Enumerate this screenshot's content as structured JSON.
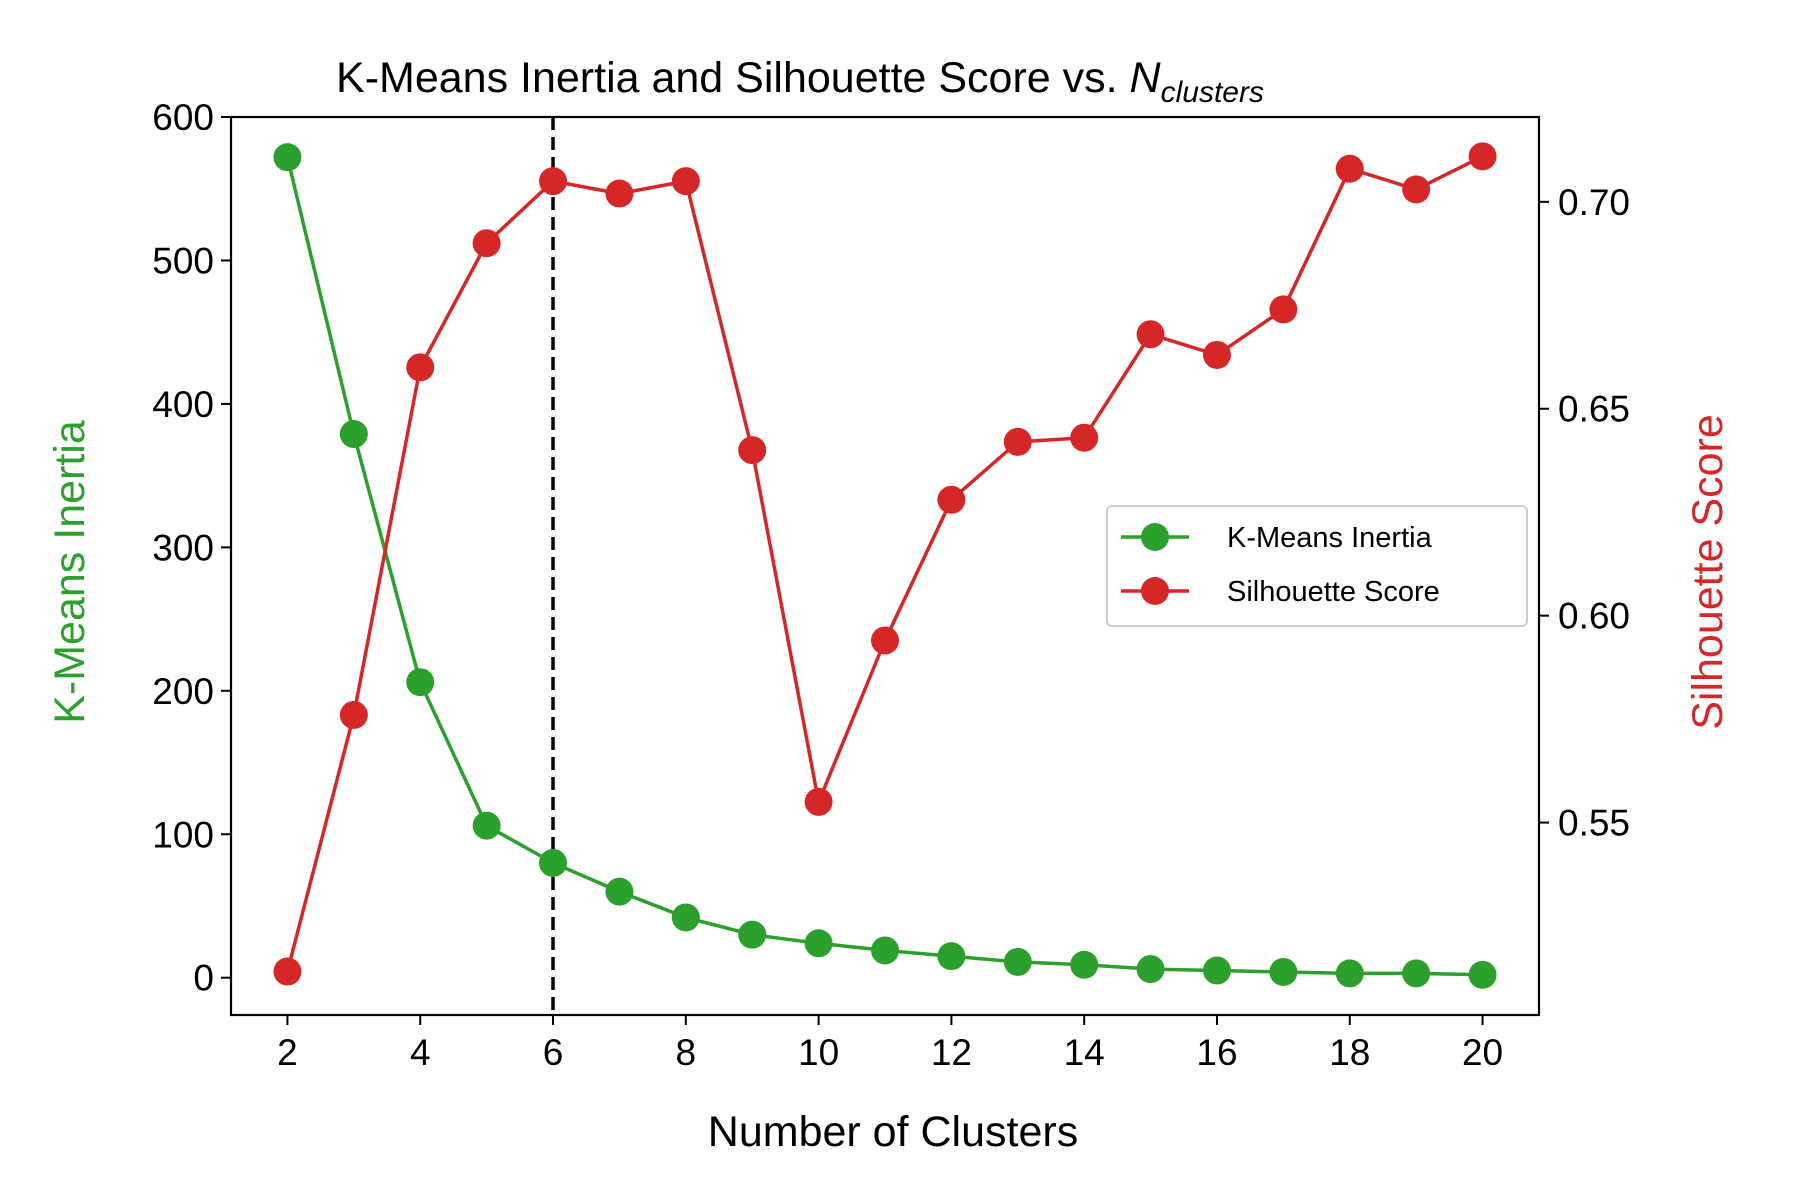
{
  "chart_data": {
    "type": "line",
    "title": "K-Means Inertia and Silhouette Score vs. ",
    "title_math_base": "N",
    "title_math_sub": "clusters",
    "xlabel": "Number of Clusters",
    "ylabel_left": "K-Means Inertia",
    "ylabel_right": "Silhouette Score",
    "x": [
      2,
      3,
      4,
      5,
      6,
      7,
      8,
      9,
      10,
      11,
      12,
      13,
      14,
      15,
      16,
      17,
      18,
      19,
      20
    ],
    "xlim": [
      1.15,
      20.85
    ],
    "xticks": [
      2,
      4,
      6,
      8,
      10,
      12,
      14,
      16,
      18,
      20
    ],
    "ylim_left": [
      -26,
      600
    ],
    "yticks_left": [
      0,
      100,
      200,
      300,
      400,
      500,
      600
    ],
    "ylim_right": [
      0.5035,
      0.7205
    ],
    "yticks_right": [
      0.55,
      0.6,
      0.65,
      0.7
    ],
    "yticklabels_right": [
      "0.55",
      "0.60",
      "0.65",
      "0.70"
    ],
    "vline_x": 6,
    "vline_style": "dashed",
    "legend_position": "center-right",
    "grid": false,
    "series": [
      {
        "name": "K-Means Inertia",
        "axis": "left",
        "color": "#2ca02c",
        "values": [
          572,
          379,
          206,
          106,
          80,
          60,
          42,
          30,
          24,
          19,
          15,
          11,
          9,
          6,
          5,
          4,
          3,
          3,
          2
        ]
      },
      {
        "name": "Silhouette Score",
        "axis": "right",
        "color": "#d62728",
        "values": [
          0.514,
          0.576,
          0.66,
          0.69,
          0.705,
          0.702,
          0.705,
          0.64,
          0.555,
          0.594,
          0.628,
          0.642,
          0.643,
          0.668,
          0.663,
          0.674,
          0.708,
          0.703,
          0.711
        ]
      }
    ]
  }
}
